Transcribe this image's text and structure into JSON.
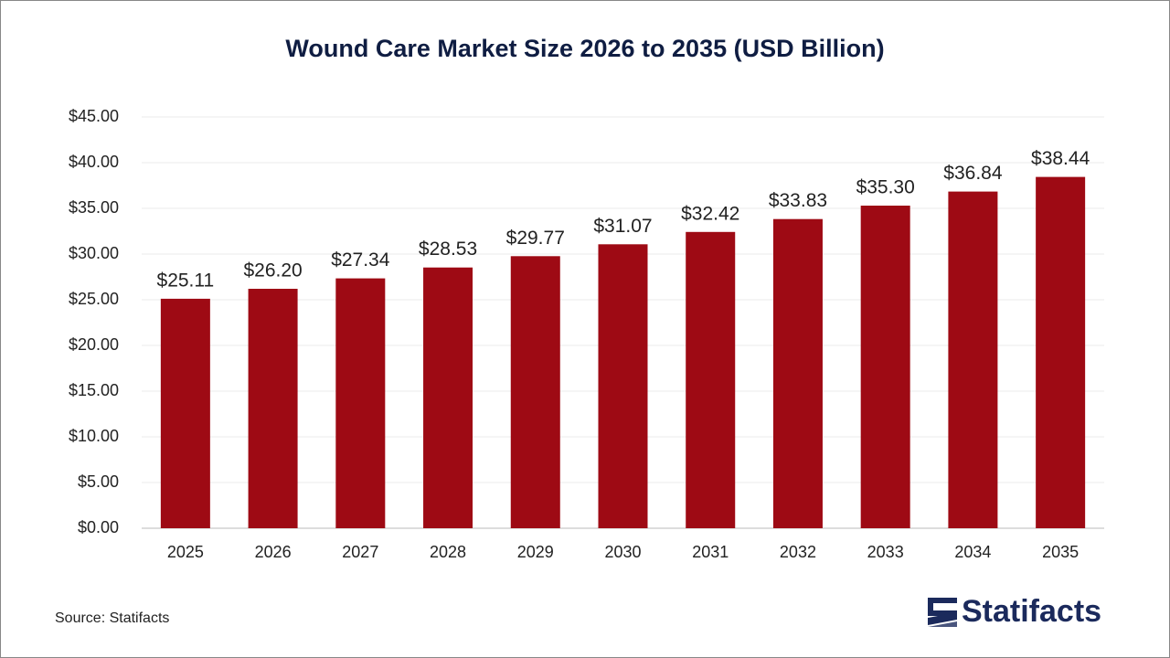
{
  "chart_data": {
    "type": "bar",
    "title": "Wound Care Market Size 2026 to 2035 (USD Billion)",
    "categories": [
      "2025",
      "2026",
      "2027",
      "2028",
      "2029",
      "2030",
      "2031",
      "2032",
      "2033",
      "2034",
      "2035"
    ],
    "values": [
      25.11,
      26.2,
      27.34,
      28.53,
      29.77,
      31.07,
      32.42,
      33.83,
      35.3,
      36.84,
      38.44
    ],
    "value_labels": [
      "$25.11",
      "$26.20",
      "$27.34",
      "$28.53",
      "$29.77",
      "$31.07",
      "$32.42",
      "$33.83",
      "$35.30",
      "$36.84",
      "$38.44"
    ],
    "color": "#9e0a14",
    "ylim": [
      0,
      45
    ],
    "yticks": [
      {
        "value": 0,
        "label": "$0.00"
      },
      {
        "value": 5,
        "label": "$5.00"
      },
      {
        "value": 10,
        "label": "$10.00"
      },
      {
        "value": 15,
        "label": "$15.00"
      },
      {
        "value": 20,
        "label": "$20.00"
      },
      {
        "value": 25,
        "label": "$25.00"
      },
      {
        "value": 30,
        "label": "$30.00"
      },
      {
        "value": 35,
        "label": "$35.00"
      },
      {
        "value": 40,
        "label": "$40.00"
      },
      {
        "value": 45,
        "label": "$45.00"
      }
    ],
    "grid": true
  },
  "source": "Source: Statifacts",
  "logo": "Statifacts"
}
